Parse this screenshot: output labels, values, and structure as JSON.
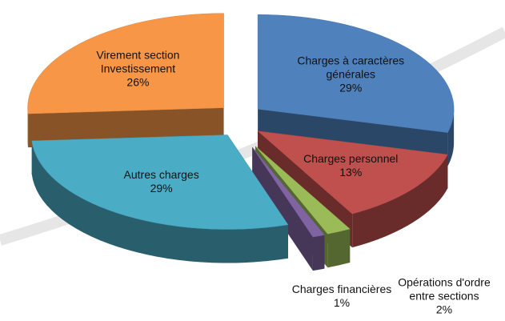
{
  "chart_data": {
    "type": "pie3d",
    "categories": [
      "Charges à caractères générales",
      "Charges personnel",
      "Opérations d'ordre entre sections",
      "Charges financières",
      "Autres charges",
      "Virement section Investissement"
    ],
    "values": [
      29,
      13,
      2,
      1,
      29,
      26
    ],
    "value_labels": [
      "29%",
      "13%",
      "2%",
      "1%",
      "29%",
      "26%"
    ],
    "colors": [
      "#4f81bd",
      "#c0504d",
      "#9bbb59",
      "#8064a2",
      "#4bacc6",
      "#f79646"
    ]
  }
}
